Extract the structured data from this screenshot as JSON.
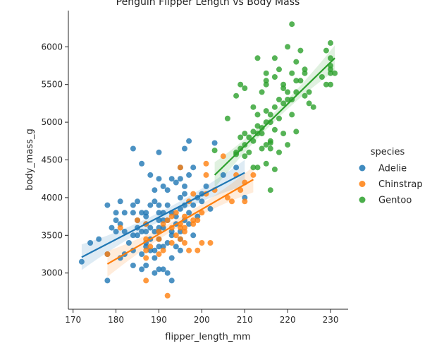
{
  "chart_data": {
    "type": "scatter",
    "title": "Penguin Flipper Length vs Body Mass",
    "xlabel": "flipper_length_mm",
    "ylabel": "body_mass_g",
    "xlim": [
      168.9,
      234.1
    ],
    "ylim": [
      2520,
      6480
    ],
    "xticks": [
      170,
      180,
      190,
      200,
      210,
      220,
      230
    ],
    "yticks": [
      3000,
      3500,
      4000,
      4500,
      5000,
      5500,
      6000
    ],
    "grid": false,
    "legend": {
      "title": "species",
      "placement": "right"
    },
    "series": [
      {
        "name": "Adelie",
        "color": "#1f77b4",
        "regression": {
          "x": [
            172,
            210
          ],
          "y": [
            3210,
            4330
          ]
        },
        "points": [
          [
            172,
            3150
          ],
          [
            174,
            3400
          ],
          [
            176,
            3450
          ],
          [
            178,
            2900
          ],
          [
            178,
            3250
          ],
          [
            178,
            3900
          ],
          [
            179,
            3600
          ],
          [
            180,
            3800
          ],
          [
            180,
            3700
          ],
          [
            180,
            3550
          ],
          [
            181,
            3650
          ],
          [
            181,
            3200
          ],
          [
            181,
            3950
          ],
          [
            182,
            3800
          ],
          [
            182,
            3250
          ],
          [
            182,
            3550
          ],
          [
            183,
            3400
          ],
          [
            184,
            3100
          ],
          [
            184,
            3800
          ],
          [
            184,
            3500
          ],
          [
            184,
            3900
          ],
          [
            184,
            4650
          ],
          [
            184,
            3300
          ],
          [
            185,
            3700
          ],
          [
            185,
            3950
          ],
          [
            185,
            3600
          ],
          [
            185,
            3500
          ],
          [
            186,
            3250
          ],
          [
            186,
            3800
          ],
          [
            186,
            3550
          ],
          [
            186,
            3050
          ],
          [
            186,
            4450
          ],
          [
            187,
            3400
          ],
          [
            187,
            3750
          ],
          [
            187,
            3550
          ],
          [
            187,
            3350
          ],
          [
            187,
            3100
          ],
          [
            187,
            3650
          ],
          [
            187,
            3800
          ],
          [
            188,
            3600
          ],
          [
            188,
            3300
          ],
          [
            188,
            3450
          ],
          [
            188,
            3900
          ],
          [
            188,
            4300
          ],
          [
            189,
            3200
          ],
          [
            189,
            3950
          ],
          [
            189,
            3550
          ],
          [
            189,
            3000
          ],
          [
            189,
            4100
          ],
          [
            189,
            3300
          ],
          [
            190,
            3450
          ],
          [
            190,
            3550
          ],
          [
            190,
            3700
          ],
          [
            190,
            3900
          ],
          [
            190,
            4250
          ],
          [
            190,
            3050
          ],
          [
            190,
            4600
          ],
          [
            190,
            3800
          ],
          [
            190,
            3350
          ],
          [
            190,
            3600
          ],
          [
            191,
            3600
          ],
          [
            191,
            3700
          ],
          [
            191,
            3800
          ],
          [
            191,
            4150
          ],
          [
            191,
            3050
          ],
          [
            191,
            3350
          ],
          [
            192,
            3000
          ],
          [
            192,
            3900
          ],
          [
            192,
            3700
          ],
          [
            192,
            4100
          ],
          [
            192,
            3400
          ],
          [
            193,
            2900
          ],
          [
            193,
            3550
          ],
          [
            193,
            3800
          ],
          [
            193,
            4250
          ],
          [
            193,
            3500
          ],
          [
            193,
            3200
          ],
          [
            194,
            3350
          ],
          [
            194,
            3750
          ],
          [
            194,
            4200
          ],
          [
            194,
            3650
          ],
          [
            195,
            3450
          ],
          [
            195,
            3850
          ],
          [
            195,
            4250
          ],
          [
            195,
            3300
          ],
          [
            195,
            4400
          ],
          [
            195,
            4000
          ],
          [
            195,
            3550
          ],
          [
            196,
            3700
          ],
          [
            196,
            4050
          ],
          [
            196,
            4650
          ],
          [
            196,
            4150
          ],
          [
            196,
            3900
          ],
          [
            197,
            4300
          ],
          [
            197,
            3650
          ],
          [
            197,
            4750
          ],
          [
            197,
            3800
          ],
          [
            198,
            3900
          ],
          [
            198,
            4400
          ],
          [
            198,
            3500
          ],
          [
            199,
            4000
          ],
          [
            199,
            3750
          ],
          [
            200,
            4050
          ],
          [
            200,
            3950
          ],
          [
            201,
            4150
          ],
          [
            202,
            3850
          ],
          [
            203,
            4725
          ],
          [
            205,
            4300
          ],
          [
            208,
            4400
          ],
          [
            210,
            4000
          ]
        ]
      },
      {
        "name": "Chinstrap",
        "color": "#ff7f0e",
        "regression": {
          "x": [
            178,
            212
          ],
          "y": [
            3120,
            4240
          ]
        },
        "points": [
          [
            178,
            3250
          ],
          [
            181,
            3600
          ],
          [
            185,
            3700
          ],
          [
            187,
            2900
          ],
          [
            187,
            3200
          ],
          [
            187,
            3300
          ],
          [
            187,
            3450
          ],
          [
            187,
            3650
          ],
          [
            188,
            3350
          ],
          [
            190,
            3250
          ],
          [
            190,
            3450
          ],
          [
            190,
            3550
          ],
          [
            191,
            3300
          ],
          [
            191,
            3650
          ],
          [
            192,
            2700
          ],
          [
            192,
            3700
          ],
          [
            193,
            3400
          ],
          [
            193,
            3600
          ],
          [
            193,
            3750
          ],
          [
            194,
            3500
          ],
          [
            194,
            3800
          ],
          [
            195,
            3450
          ],
          [
            195,
            3600
          ],
          [
            195,
            3650
          ],
          [
            195,
            4400
          ],
          [
            196,
            3400
          ],
          [
            196,
            3550
          ],
          [
            196,
            3600
          ],
          [
            196,
            3750
          ],
          [
            197,
            3300
          ],
          [
            197,
            3950
          ],
          [
            198,
            3700
          ],
          [
            198,
            3650
          ],
          [
            198,
            4050
          ],
          [
            199,
            3300
          ],
          [
            199,
            3700
          ],
          [
            200,
            3400
          ],
          [
            200,
            3800
          ],
          [
            201,
            4050
          ],
          [
            201,
            4450
          ],
          [
            201,
            4300
          ],
          [
            202,
            3400
          ],
          [
            203,
            4100
          ],
          [
            205,
            4550
          ],
          [
            206,
            4000
          ],
          [
            207,
            3950
          ],
          [
            208,
            4300
          ],
          [
            209,
            4100
          ],
          [
            210,
            3950
          ],
          [
            210,
            4200
          ],
          [
            212,
            4300
          ]
        ]
      },
      {
        "name": "Gentoo",
        "color": "#2ca02c",
        "regression": {
          "x": [
            203,
            231
          ],
          "y": [
            4300,
            5850
          ]
        },
        "points": [
          [
            203,
            4625
          ],
          [
            206,
            5050
          ],
          [
            208,
            4600
          ],
          [
            208,
            5350
          ],
          [
            208,
            4575
          ],
          [
            209,
            4800
          ],
          [
            209,
            5500
          ],
          [
            209,
            4650
          ],
          [
            210,
            4700
          ],
          [
            210,
            4850
          ],
          [
            210,
            4550
          ],
          [
            210,
            5450
          ],
          [
            211,
            4800
          ],
          [
            211,
            4600
          ],
          [
            212,
            5200
          ],
          [
            212,
            4875
          ],
          [
            212,
            4750
          ],
          [
            212,
            4400
          ],
          [
            213,
            4850
          ],
          [
            213,
            5100
          ],
          [
            213,
            5850
          ],
          [
            213,
            4950
          ],
          [
            213,
            4400
          ],
          [
            214,
            4650
          ],
          [
            214,
            4925
          ],
          [
            214,
            5400
          ],
          [
            214,
            4850
          ],
          [
            215,
            5000
          ],
          [
            215,
            5150
          ],
          [
            215,
            5650
          ],
          [
            215,
            4450
          ],
          [
            215,
            4700
          ],
          [
            215,
            5500
          ],
          [
            215,
            5550
          ],
          [
            216,
            4725
          ],
          [
            216,
            5100
          ],
          [
            216,
            4650
          ],
          [
            216,
            5000
          ],
          [
            216,
            4100
          ],
          [
            216,
            4750
          ],
          [
            217,
            5850
          ],
          [
            217,
            5600
          ],
          [
            217,
            4375
          ],
          [
            217,
            5200
          ],
          [
            217,
            4900
          ],
          [
            218,
            5300
          ],
          [
            218,
            5700
          ],
          [
            218,
            5050
          ],
          [
            218,
            4600
          ],
          [
            219,
            5250
          ],
          [
            219,
            4850
          ],
          [
            219,
            5450
          ],
          [
            219,
            5500
          ],
          [
            220,
            4700
          ],
          [
            220,
            5300
          ],
          [
            220,
            6000
          ],
          [
            220,
            5400
          ],
          [
            221,
            5100
          ],
          [
            221,
            5650
          ],
          [
            221,
            5300
          ],
          [
            221,
            6300
          ],
          [
            222,
            4875
          ],
          [
            222,
            5800
          ],
          [
            222,
            5550
          ],
          [
            222,
            5400
          ],
          [
            223,
            5950
          ],
          [
            223,
            5550
          ],
          [
            224,
            5350
          ],
          [
            224,
            5700
          ],
          [
            224,
            5650
          ],
          [
            225,
            5250
          ],
          [
            225,
            5400
          ],
          [
            226,
            5200
          ],
          [
            228,
            5600
          ],
          [
            229,
            5950
          ],
          [
            229,
            5500
          ],
          [
            230,
            5650
          ],
          [
            230,
            5500
          ],
          [
            230,
            5750
          ],
          [
            230,
            6050
          ],
          [
            230,
            5700
          ],
          [
            230,
            5850
          ],
          [
            231,
            5650
          ]
        ]
      }
    ]
  }
}
